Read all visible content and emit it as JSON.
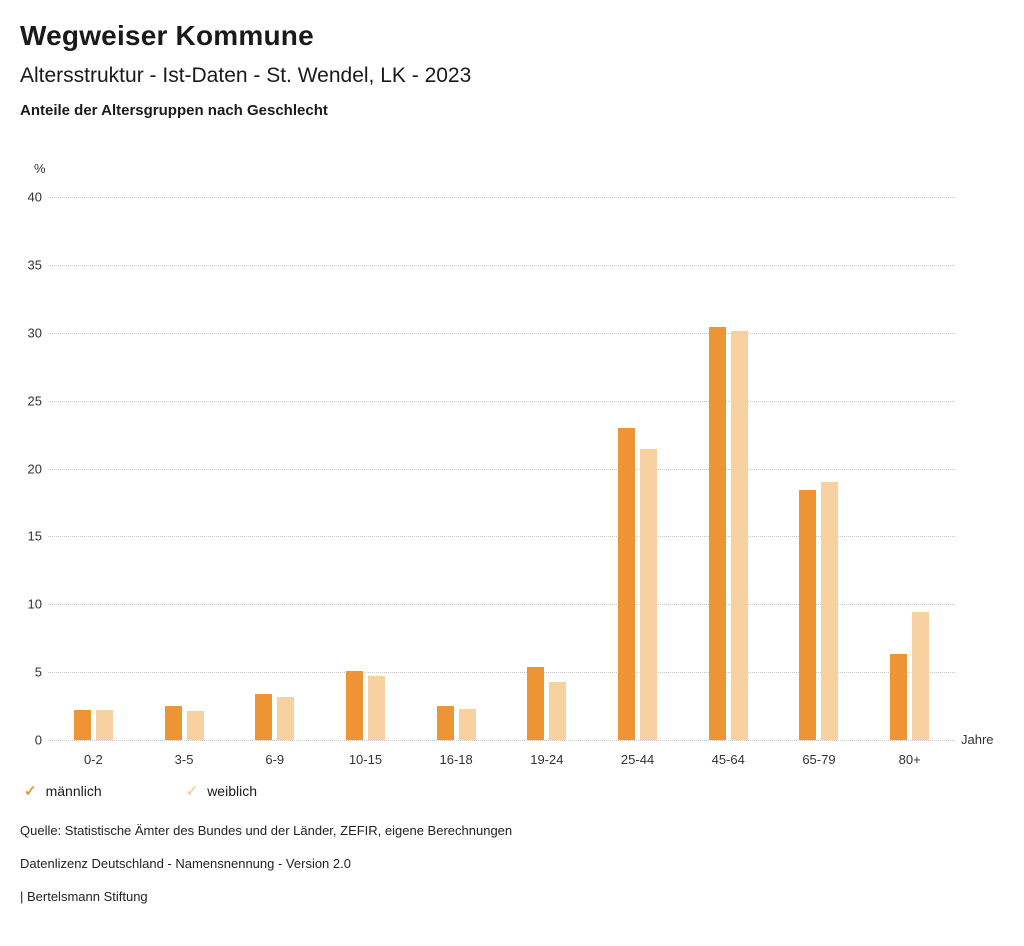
{
  "header": {
    "title": "Wegweiser Kommune",
    "subtitle": "Altersstruktur - Ist-Daten - St. Wendel, LK - 2023",
    "chart_title": "Anteile der Altersgruppen nach Geschlecht"
  },
  "chart_data": {
    "type": "bar",
    "title": "Anteile der Altersgruppen nach Geschlecht",
    "ylabel": "%",
    "xlabel": "Jahre",
    "ylim": [
      0,
      40
    ],
    "ytick_step": 5,
    "grid": true,
    "legend_position": "bottom",
    "categories": [
      "0-2",
      "3-5",
      "6-9",
      "10-15",
      "16-18",
      "19-24",
      "25-44",
      "45-64",
      "65-79",
      "80+"
    ],
    "series": [
      {
        "name": "männlich",
        "color": "#ED9435",
        "values": [
          2.2,
          2.5,
          3.4,
          5.1,
          2.5,
          5.4,
          23.0,
          30.4,
          18.4,
          6.3
        ]
      },
      {
        "name": "weiblich",
        "color": "#F7D2A0",
        "values": [
          2.2,
          2.1,
          3.2,
          4.7,
          2.3,
          4.3,
          21.4,
          30.1,
          19.0,
          9.4
        ]
      }
    ]
  },
  "legend": {
    "check_icon": "✓",
    "items": [
      {
        "label": "männlich",
        "color": "#ED9435"
      },
      {
        "label": "weiblich",
        "color": "#F7D2A0"
      }
    ]
  },
  "footer": {
    "source": "Quelle: Statistische Ämter des Bundes und der Länder, ZEFIR, eigene Berechnungen",
    "license": "Datenlizenz Deutschland - Namensnennung - Version 2.0",
    "attribution": "| Bertelsmann Stiftung"
  }
}
